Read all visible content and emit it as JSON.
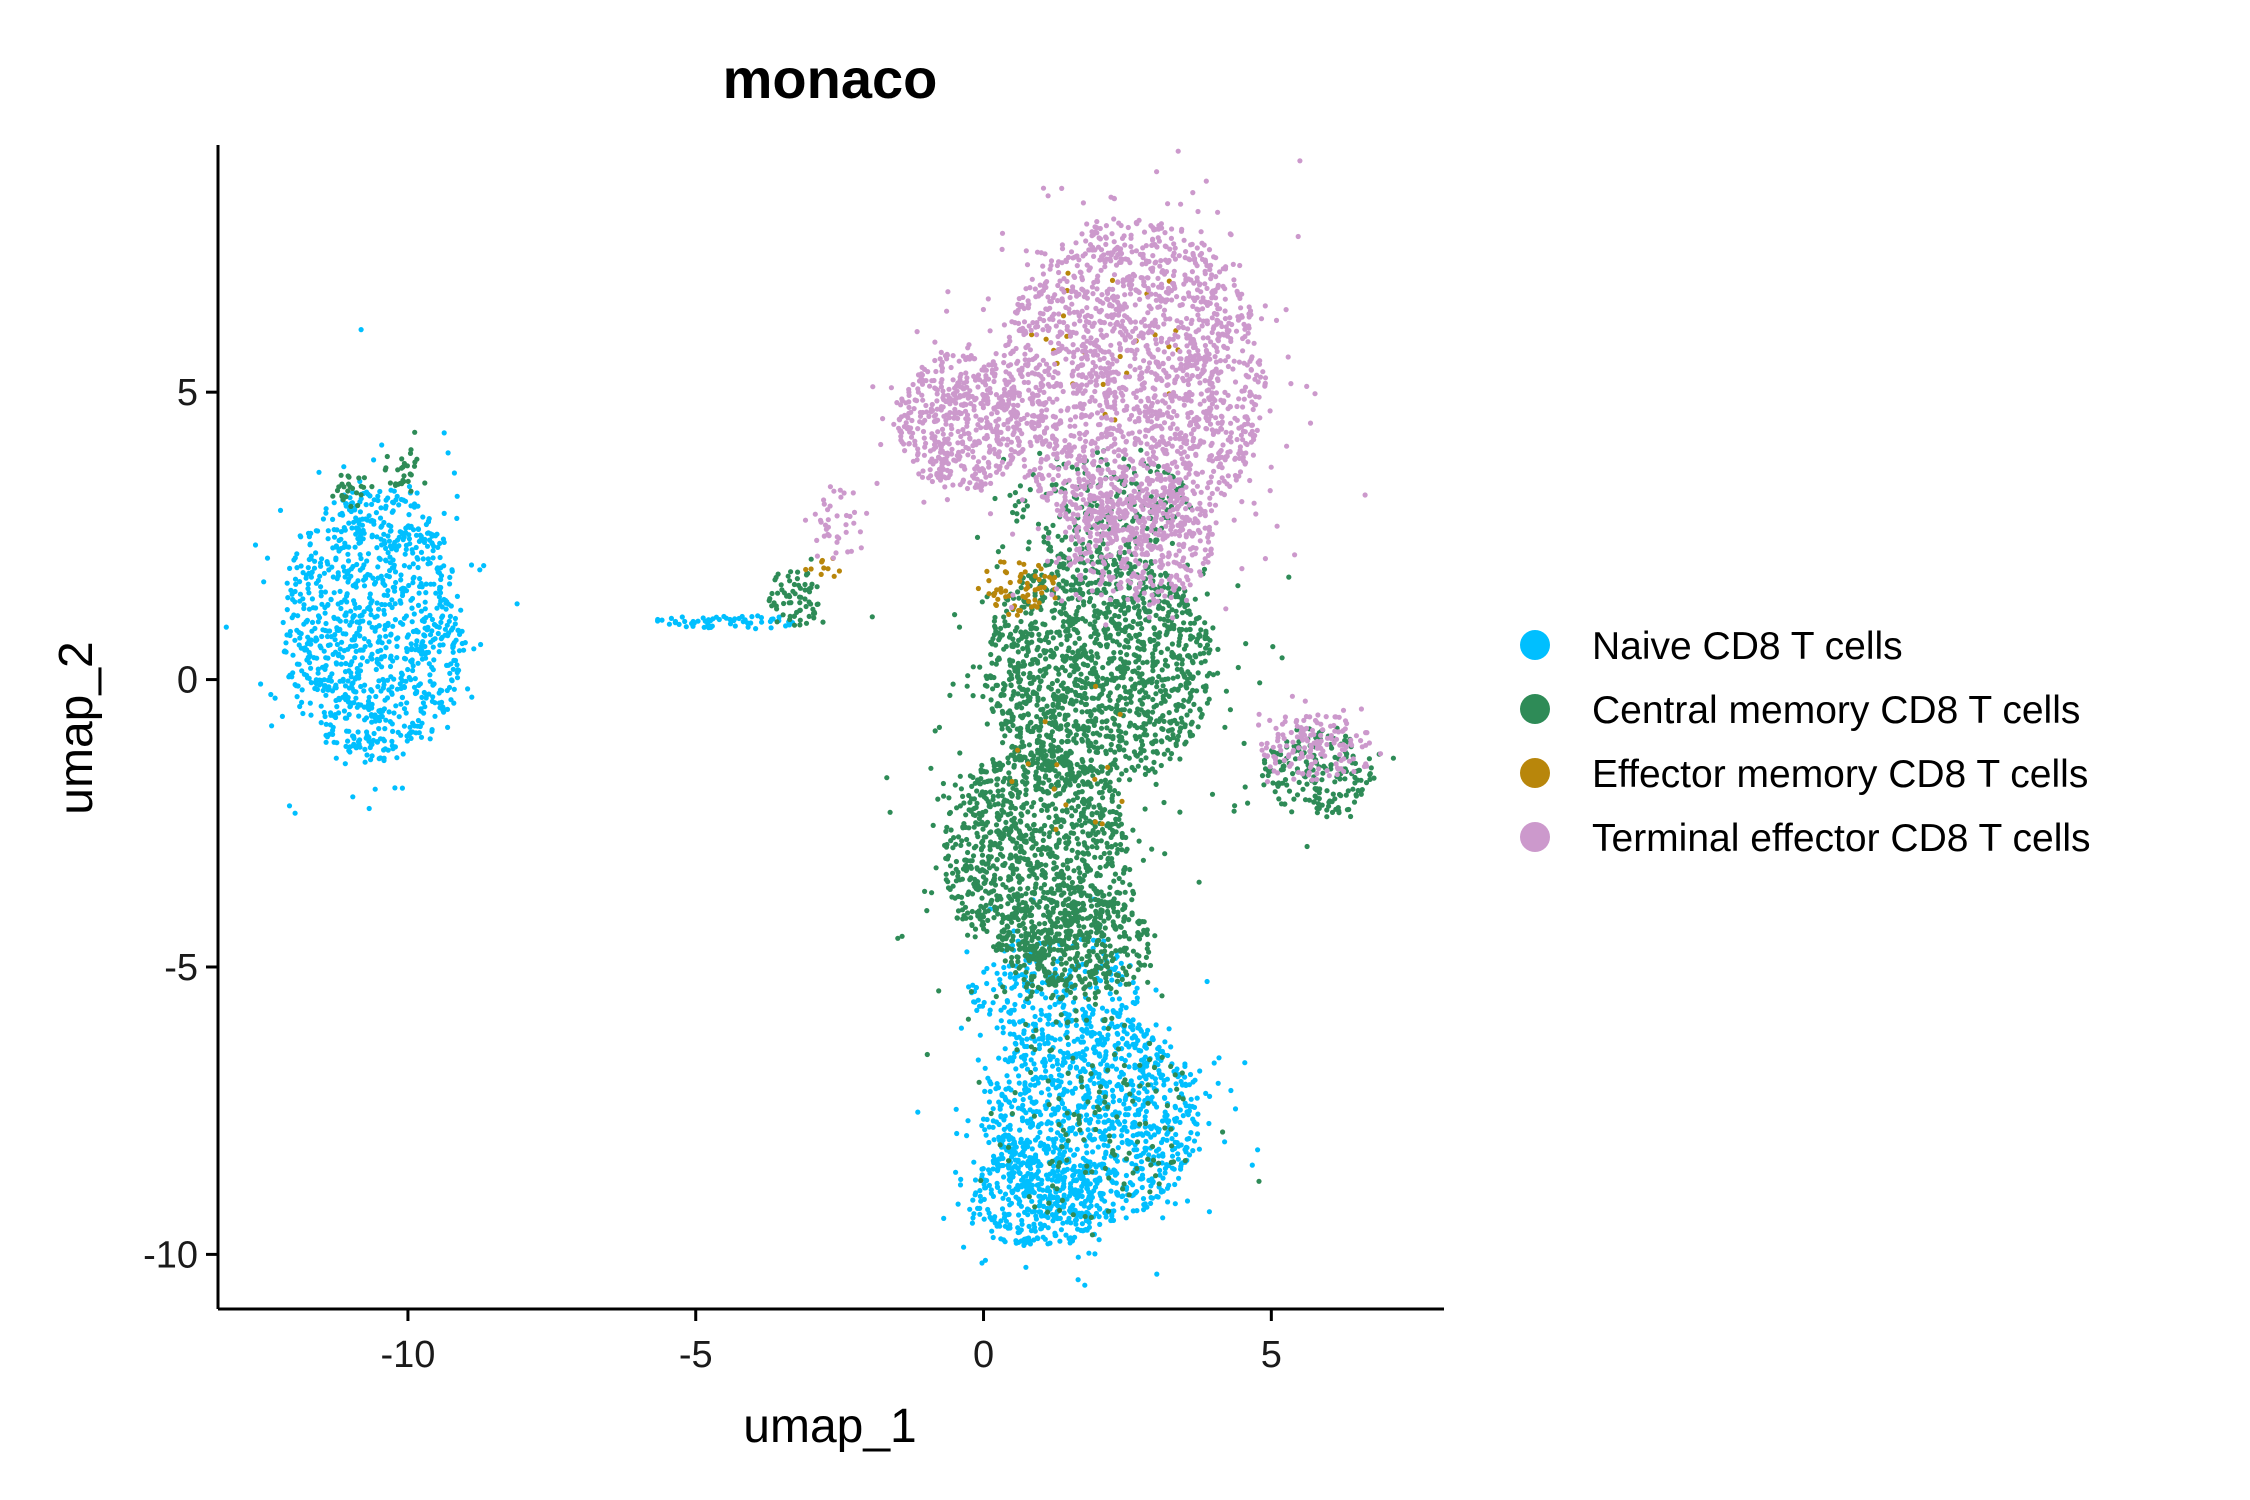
{
  "chart_data": {
    "type": "scatter",
    "title": "monaco",
    "xlabel": "umap_1",
    "ylabel": "umap_2",
    "xlim": [
      -13.3,
      8.0
    ],
    "ylim": [
      -10.95,
      9.3
    ],
    "x_ticks": [
      -10,
      -5,
      0,
      5
    ],
    "y_ticks": [
      -10,
      -5,
      0,
      5
    ],
    "x_tick_labels": [
      "-10",
      "-5",
      "0",
      "5"
    ],
    "y_tick_labels": [
      "-10",
      "-5",
      "0",
      "5"
    ],
    "grid": false,
    "legend_position": "right",
    "series": [
      {
        "name": "Naive CD8 T cells",
        "color": "#00BFFF",
        "regions": [
          {
            "cx": -10.6,
            "cy": 0.95,
            "rx": 1.6,
            "ry": 2.4,
            "n": 1100
          },
          {
            "cx": 1.85,
            "cy": -7.6,
            "rx": 1.9,
            "ry": 1.9,
            "n": 1100
          },
          {
            "cx": 0.9,
            "cy": -9.0,
            "rx": 1.2,
            "ry": 0.9,
            "n": 350
          },
          {
            "cx": 1.2,
            "cy": -5.4,
            "rx": 1.5,
            "ry": 1.0,
            "n": 220
          },
          {
            "cx": -4.4,
            "cy": 1.0,
            "rx": 1.3,
            "ry": 0.12,
            "n": 60
          }
        ]
      },
      {
        "name": "Central memory CD8 T cells",
        "color": "#2E8B57",
        "regions": [
          {
            "cx": 2.0,
            "cy": 0.2,
            "rx": 2.0,
            "ry": 2.1,
            "n": 1500
          },
          {
            "cx": 0.9,
            "cy": -3.0,
            "rx": 1.6,
            "ry": 1.9,
            "n": 1100
          },
          {
            "cx": 1.6,
            "cy": -4.6,
            "rx": 1.3,
            "ry": 1.0,
            "n": 420
          },
          {
            "cx": 5.8,
            "cy": -1.6,
            "rx": 1.0,
            "ry": 0.8,
            "n": 200
          },
          {
            "cx": -3.3,
            "cy": 1.4,
            "rx": 0.45,
            "ry": 0.55,
            "n": 70
          },
          {
            "cx": -10.1,
            "cy": 3.7,
            "rx": 0.35,
            "ry": 0.35,
            "n": 30
          },
          {
            "cx": -11.0,
            "cy": 3.3,
            "rx": 0.35,
            "ry": 0.3,
            "n": 25
          },
          {
            "cx": 2.0,
            "cy": 3.0,
            "rx": 1.6,
            "ry": 1.0,
            "n": 180
          },
          {
            "cx": 1.9,
            "cy": -7.6,
            "rx": 1.8,
            "ry": 1.8,
            "n": 140
          }
        ]
      },
      {
        "name": "Effector memory CD8 T cells",
        "color": "#B8860B",
        "regions": [
          {
            "cx": 0.6,
            "cy": 1.6,
            "rx": 0.7,
            "ry": 0.5,
            "n": 60
          },
          {
            "cx": -2.8,
            "cy": 1.9,
            "rx": 0.3,
            "ry": 0.3,
            "n": 10
          },
          {
            "cx": 2.4,
            "cy": 6.0,
            "rx": 1.4,
            "ry": 1.6,
            "n": 25
          },
          {
            "cx": 1.5,
            "cy": -1.5,
            "rx": 1.5,
            "ry": 1.5,
            "n": 15
          }
        ]
      },
      {
        "name": "Terminal effector CD8 T cells",
        "color": "#CC99CC",
        "regions": [
          {
            "cx": 2.6,
            "cy": 5.2,
            "rx": 2.3,
            "ry": 2.8,
            "n": 2000
          },
          {
            "cx": -0.4,
            "cy": 4.5,
            "rx": 1.1,
            "ry": 1.2,
            "n": 500
          },
          {
            "cx": 2.7,
            "cy": 2.4,
            "rx": 1.3,
            "ry": 1.1,
            "n": 400
          },
          {
            "cx": 5.8,
            "cy": -1.2,
            "rx": 1.0,
            "ry": 0.6,
            "n": 160
          },
          {
            "cx": -2.5,
            "cy": 2.7,
            "rx": 0.6,
            "ry": 0.6,
            "n": 40
          }
        ]
      }
    ]
  }
}
